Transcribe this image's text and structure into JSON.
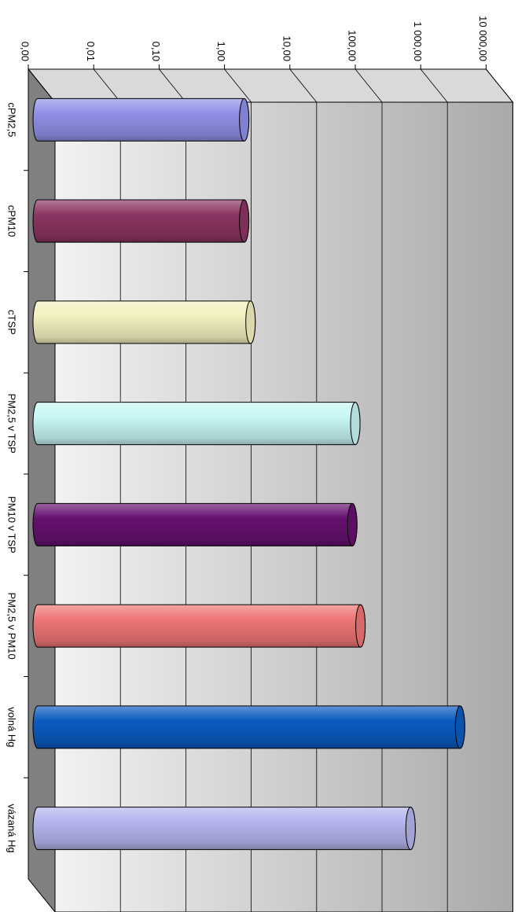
{
  "chart_data": {
    "type": "bar",
    "orientation": "horizontal-3d-cylinder",
    "scale": "log10",
    "xlim": [
      0.001,
      10000
    ],
    "x_ticks": [
      "0,00",
      "0,01",
      "0,10",
      "1,00",
      "10,00",
      "100,00",
      "1 000,00",
      "10 000,00"
    ],
    "categories": [
      "cPM2,5",
      "cPM10",
      "cTSP",
      "PM2,5 v TSP",
      "PM10 v TSP",
      "PM2,5 v PM10",
      "volná Hg",
      "vázaná Hg"
    ],
    "values": [
      2.0,
      2.0,
      2.5,
      100,
      90,
      120,
      4000,
      700
    ],
    "colors": [
      "#8f8fe8",
      "#8b3461",
      "#f3f0bf",
      "#c6f6f4",
      "#65106f",
      "#ee7575",
      "#0a5bc0",
      "#b4b4ec"
    ],
    "title": "",
    "xlabel": "",
    "ylabel": "",
    "grid": true,
    "legend": "none"
  }
}
